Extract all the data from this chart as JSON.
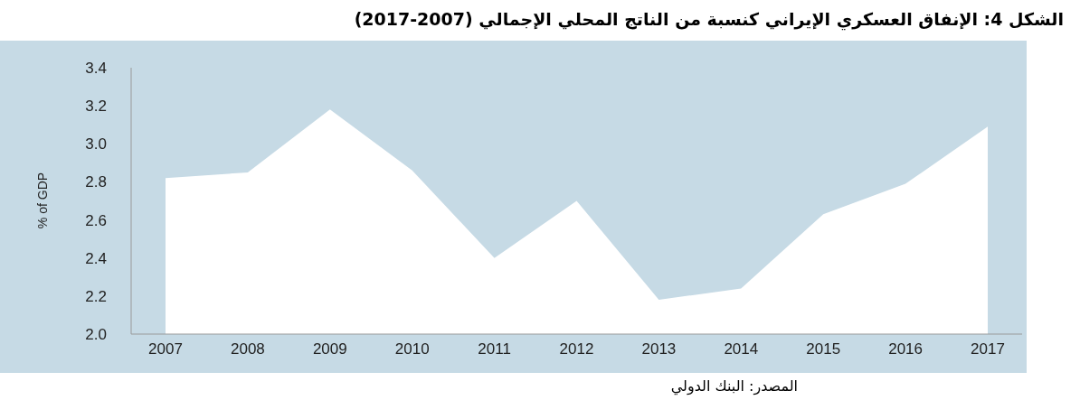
{
  "chart_data": {
    "type": "area",
    "title": "الشكل 4: الإنفاق العسكري الإيراني كنسبة من الناتج المحلي الإجمالي (2007-2017)",
    "ylabel": "% of GDP",
    "categories": [
      "2007",
      "2008",
      "2009",
      "2010",
      "2011",
      "2012",
      "2013",
      "2014",
      "2015",
      "2016",
      "2017"
    ],
    "values": [
      2.82,
      2.85,
      3.18,
      2.86,
      2.4,
      2.7,
      2.18,
      2.24,
      2.63,
      2.79,
      3.09
    ],
    "color": "#ffffff",
    "ylim": [
      2.0,
      3.4
    ],
    "yticks": [
      {
        "value": 2.0,
        "label": "2.0"
      },
      {
        "value": 2.2,
        "label": "2.2"
      },
      {
        "value": 2.4,
        "label": "2.4"
      },
      {
        "value": 2.6,
        "label": "2.6"
      },
      {
        "value": 2.8,
        "label": "2.8"
      },
      {
        "value": 3.0,
        "label": "3.0"
      },
      {
        "value": 3.2,
        "label": "3.2"
      },
      {
        "value": 3.4,
        "label": "3.4"
      }
    ],
    "annotations": [
      "المصدر: البنك الدولي"
    ]
  }
}
